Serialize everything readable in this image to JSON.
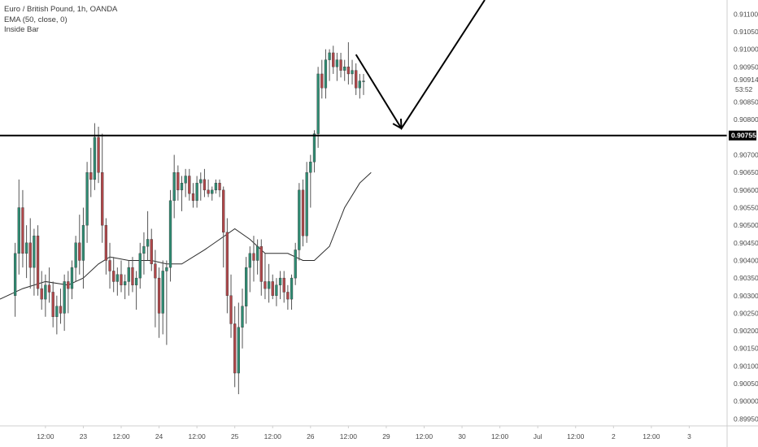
{
  "legend": {
    "symbol": "Euro / British Pound, 1h, OANDA",
    "indicator_ema": "EMA (50, close, 0)",
    "indicator_inside": "Inside Bar"
  },
  "chart_data": {
    "type": "candlestick",
    "instrument": "EUR/GBP",
    "timeframe": "1h",
    "y_axis": {
      "range": [
        0.8993,
        0.9114
      ],
      "tick_labels": [
        "0.91100",
        "0.91050",
        "0.91000",
        "0.90950",
        "0.90914",
        "0.90850",
        "0.90800",
        "0.90755",
        "0.90700",
        "0.90650",
        "0.90600",
        "0.90550",
        "0.90500",
        "0.90450",
        "0.90400",
        "0.90350",
        "0.90300",
        "0.90250",
        "0.90200",
        "0.90150",
        "0.90100",
        "0.90050",
        "0.90000",
        "0.89950"
      ],
      "tick_values": [
        0.911,
        0.9105,
        0.91,
        0.9095,
        0.90914,
        0.9085,
        0.908,
        0.90755,
        0.907,
        0.9065,
        0.906,
        0.9055,
        0.905,
        0.9045,
        0.904,
        0.9035,
        0.903,
        0.9025,
        0.902,
        0.9015,
        0.901,
        0.9005,
        0.9,
        0.8995
      ]
    },
    "x_axis": {
      "range": [
        -4,
        188
      ],
      "tick_labels": [
        "12:00",
        "23",
        "12:00",
        "24",
        "12:00",
        "25",
        "12:00",
        "26",
        "12:00",
        "29",
        "12:00",
        "30",
        "12:00",
        "Jul",
        "12:00",
        "2",
        "12:00",
        "3"
      ],
      "tick_values": [
        8,
        18,
        28,
        38,
        48,
        58,
        68,
        78,
        88,
        98,
        108,
        118,
        128,
        138,
        148,
        158,
        168,
        178
      ]
    },
    "last_price_label": "0.90914",
    "countdown_label": "53:52",
    "horizontal_level": {
      "value": 0.90755,
      "label": "0.90755"
    },
    "projection_arrow": {
      "points": [
        [
          90,
          0.90985
        ],
        [
          102,
          0.90775
        ],
        [
          124,
          0.9114
        ]
      ]
    },
    "ema": [
      [
        -4,
        0.9029
      ],
      [
        2,
        0.9032
      ],
      [
        8,
        0.9034
      ],
      [
        14,
        0.9033
      ],
      [
        18,
        0.9035
      ],
      [
        22,
        0.9039
      ],
      [
        25,
        0.9041
      ],
      [
        30,
        0.904
      ],
      [
        36,
        0.904
      ],
      [
        40,
        0.9039
      ],
      [
        44,
        0.9039
      ],
      [
        50,
        0.9043
      ],
      [
        54,
        0.9046
      ],
      [
        58,
        0.9049
      ],
      [
        62,
        0.9046
      ],
      [
        66,
        0.9042
      ],
      [
        72,
        0.9042
      ],
      [
        76,
        0.904
      ],
      [
        79,
        0.904
      ],
      [
        83,
        0.9044
      ],
      [
        87,
        0.9055
      ],
      [
        91,
        0.9062
      ],
      [
        94,
        0.9065
      ]
    ],
    "candles": [
      {
        "o": 0.903,
        "h": 0.9045,
        "l": 0.9024,
        "c": 0.9042
      },
      {
        "o": 0.9042,
        "h": 0.9063,
        "l": 0.9036,
        "c": 0.9055
      },
      {
        "o": 0.9055,
        "h": 0.906,
        "l": 0.9038,
        "c": 0.9042
      },
      {
        "o": 0.9042,
        "h": 0.905,
        "l": 0.9035,
        "c": 0.9045
      },
      {
        "o": 0.9045,
        "h": 0.9052,
        "l": 0.9032,
        "c": 0.9038
      },
      {
        "o": 0.9038,
        "h": 0.9049,
        "l": 0.903,
        "c": 0.9047
      },
      {
        "o": 0.9047,
        "h": 0.905,
        "l": 0.903,
        "c": 0.9032
      },
      {
        "o": 0.9032,
        "h": 0.9037,
        "l": 0.9026,
        "c": 0.9029
      },
      {
        "o": 0.9029,
        "h": 0.9036,
        "l": 0.9024,
        "c": 0.9033
      },
      {
        "o": 0.9033,
        "h": 0.9038,
        "l": 0.9028,
        "c": 0.9031
      },
      {
        "o": 0.9031,
        "h": 0.9034,
        "l": 0.9021,
        "c": 0.9024
      },
      {
        "o": 0.9024,
        "h": 0.903,
        "l": 0.9019,
        "c": 0.9027
      },
      {
        "o": 0.9027,
        "h": 0.9032,
        "l": 0.9022,
        "c": 0.9025
      },
      {
        "o": 0.9025,
        "h": 0.9036,
        "l": 0.902,
        "c": 0.9034
      },
      {
        "o": 0.9034,
        "h": 0.9037,
        "l": 0.9025,
        "c": 0.9032
      },
      {
        "o": 0.9032,
        "h": 0.904,
        "l": 0.9029,
        "c": 0.9038
      },
      {
        "o": 0.9038,
        "h": 0.9047,
        "l": 0.9034,
        "c": 0.9045
      },
      {
        "o": 0.9045,
        "h": 0.9053,
        "l": 0.9036,
        "c": 0.904
      },
      {
        "o": 0.904,
        "h": 0.9055,
        "l": 0.9032,
        "c": 0.905
      },
      {
        "o": 0.905,
        "h": 0.9068,
        "l": 0.9045,
        "c": 0.9065
      },
      {
        "o": 0.9065,
        "h": 0.9072,
        "l": 0.9058,
        "c": 0.9063
      },
      {
        "o": 0.9063,
        "h": 0.9079,
        "l": 0.906,
        "c": 0.9075
      },
      {
        "o": 0.9075,
        "h": 0.9078,
        "l": 0.9062,
        "c": 0.9065
      },
      {
        "o": 0.9065,
        "h": 0.9076,
        "l": 0.9045,
        "c": 0.905
      },
      {
        "o": 0.905,
        "h": 0.9052,
        "l": 0.9036,
        "c": 0.904
      },
      {
        "o": 0.904,
        "h": 0.9045,
        "l": 0.9032,
        "c": 0.9037
      },
      {
        "o": 0.9037,
        "h": 0.9041,
        "l": 0.9031,
        "c": 0.9034
      },
      {
        "o": 0.9034,
        "h": 0.9038,
        "l": 0.903,
        "c": 0.9036
      },
      {
        "o": 0.9036,
        "h": 0.904,
        "l": 0.9031,
        "c": 0.9033
      },
      {
        "o": 0.9033,
        "h": 0.9036,
        "l": 0.9029,
        "c": 0.9034
      },
      {
        "o": 0.9034,
        "h": 0.904,
        "l": 0.903,
        "c": 0.9038
      },
      {
        "o": 0.9038,
        "h": 0.9041,
        "l": 0.9031,
        "c": 0.9033
      },
      {
        "o": 0.9033,
        "h": 0.9037,
        "l": 0.9026,
        "c": 0.9035
      },
      {
        "o": 0.9035,
        "h": 0.9045,
        "l": 0.9032,
        "c": 0.9042
      },
      {
        "o": 0.9042,
        "h": 0.9048,
        "l": 0.9036,
        "c": 0.9044
      },
      {
        "o": 0.9044,
        "h": 0.9054,
        "l": 0.904,
        "c": 0.9046
      },
      {
        "o": 0.9046,
        "h": 0.9049,
        "l": 0.9037,
        "c": 0.9039
      },
      {
        "o": 0.9039,
        "h": 0.9043,
        "l": 0.9021,
        "c": 0.9035
      },
      {
        "o": 0.9035,
        "h": 0.9038,
        "l": 0.9018,
        "c": 0.9025
      },
      {
        "o": 0.9025,
        "h": 0.904,
        "l": 0.9019,
        "c": 0.9037
      },
      {
        "o": 0.9037,
        "h": 0.904,
        "l": 0.9016,
        "c": 0.9038
      },
      {
        "o": 0.9038,
        "h": 0.906,
        "l": 0.9034,
        "c": 0.9057
      },
      {
        "o": 0.9057,
        "h": 0.907,
        "l": 0.9052,
        "c": 0.9065
      },
      {
        "o": 0.9065,
        "h": 0.9067,
        "l": 0.9057,
        "c": 0.906
      },
      {
        "o": 0.906,
        "h": 0.9064,
        "l": 0.9054,
        "c": 0.9062
      },
      {
        "o": 0.9062,
        "h": 0.9066,
        "l": 0.9058,
        "c": 0.9064
      },
      {
        "o": 0.9064,
        "h": 0.9066,
        "l": 0.9057,
        "c": 0.9059
      },
      {
        "o": 0.9059,
        "h": 0.9062,
        "l": 0.9055,
        "c": 0.9057
      },
      {
        "o": 0.9057,
        "h": 0.9064,
        "l": 0.9055,
        "c": 0.9062
      },
      {
        "o": 0.9062,
        "h": 0.9065,
        "l": 0.9057,
        "c": 0.9063
      },
      {
        "o": 0.9063,
        "h": 0.9066,
        "l": 0.9058,
        "c": 0.906
      },
      {
        "o": 0.906,
        "h": 0.9063,
        "l": 0.9058,
        "c": 0.9059
      },
      {
        "o": 0.9059,
        "h": 0.9061,
        "l": 0.9057,
        "c": 0.906
      },
      {
        "o": 0.906,
        "h": 0.9063,
        "l": 0.9059,
        "c": 0.9062
      },
      {
        "o": 0.9062,
        "h": 0.9063,
        "l": 0.9058,
        "c": 0.906
      },
      {
        "o": 0.906,
        "h": 0.9061,
        "l": 0.9038,
        "c": 0.9048
      },
      {
        "o": 0.9048,
        "h": 0.9052,
        "l": 0.9025,
        "c": 0.903
      },
      {
        "o": 0.903,
        "h": 0.9036,
        "l": 0.9018,
        "c": 0.9022
      },
      {
        "o": 0.9022,
        "h": 0.9027,
        "l": 0.9004,
        "c": 0.9008
      },
      {
        "o": 0.9008,
        "h": 0.9028,
        "l": 0.9002,
        "c": 0.9021
      },
      {
        "o": 0.9021,
        "h": 0.9032,
        "l": 0.9015,
        "c": 0.9027
      },
      {
        "o": 0.9027,
        "h": 0.9041,
        "l": 0.9022,
        "c": 0.9038
      },
      {
        "o": 0.9038,
        "h": 0.9044,
        "l": 0.9031,
        "c": 0.9042
      },
      {
        "o": 0.9042,
        "h": 0.9047,
        "l": 0.9034,
        "c": 0.904
      },
      {
        "o": 0.904,
        "h": 0.9046,
        "l": 0.9036,
        "c": 0.9044
      },
      {
        "o": 0.9044,
        "h": 0.9046,
        "l": 0.903,
        "c": 0.9034
      },
      {
        "o": 0.9034,
        "h": 0.9042,
        "l": 0.9029,
        "c": 0.9032
      },
      {
        "o": 0.9032,
        "h": 0.9039,
        "l": 0.9028,
        "c": 0.9034
      },
      {
        "o": 0.9034,
        "h": 0.9036,
        "l": 0.9029,
        "c": 0.903
      },
      {
        "o": 0.903,
        "h": 0.9035,
        "l": 0.9027,
        "c": 0.9033
      },
      {
        "o": 0.9033,
        "h": 0.9037,
        "l": 0.9029,
        "c": 0.9035
      },
      {
        "o": 0.9035,
        "h": 0.9037,
        "l": 0.9028,
        "c": 0.9031
      },
      {
        "o": 0.9031,
        "h": 0.9033,
        "l": 0.9026,
        "c": 0.9029
      },
      {
        "o": 0.9029,
        "h": 0.9036,
        "l": 0.9026,
        "c": 0.9035
      },
      {
        "o": 0.9035,
        "h": 0.9045,
        "l": 0.9033,
        "c": 0.9043
      },
      {
        "o": 0.9043,
        "h": 0.9062,
        "l": 0.904,
        "c": 0.906
      },
      {
        "o": 0.906,
        "h": 0.9063,
        "l": 0.9044,
        "c": 0.9047
      },
      {
        "o": 0.9047,
        "h": 0.9068,
        "l": 0.9045,
        "c": 0.9065
      },
      {
        "o": 0.9065,
        "h": 0.907,
        "l": 0.9055,
        "c": 0.9068
      },
      {
        "o": 0.9068,
        "h": 0.9077,
        "l": 0.9065,
        "c": 0.9076
      },
      {
        "o": 0.9076,
        "h": 0.9095,
        "l": 0.9072,
        "c": 0.9093
      },
      {
        "o": 0.9093,
        "h": 0.9097,
        "l": 0.9086,
        "c": 0.9089
      },
      {
        "o": 0.9089,
        "h": 0.91,
        "l": 0.9086,
        "c": 0.9097
      },
      {
        "o": 0.9097,
        "h": 0.91,
        "l": 0.9091,
        "c": 0.9099
      },
      {
        "o": 0.9099,
        "h": 0.9101,
        "l": 0.9093,
        "c": 0.9095
      },
      {
        "o": 0.9095,
        "h": 0.9099,
        "l": 0.9091,
        "c": 0.9097
      },
      {
        "o": 0.9097,
        "h": 0.9099,
        "l": 0.9092,
        "c": 0.9094
      },
      {
        "o": 0.9094,
        "h": 0.9097,
        "l": 0.9091,
        "c": 0.9095
      },
      {
        "o": 0.9095,
        "h": 0.9102,
        "l": 0.909,
        "c": 0.9093
      },
      {
        "o": 0.9093,
        "h": 0.9097,
        "l": 0.909,
        "c": 0.9094
      },
      {
        "o": 0.9094,
        "h": 0.9096,
        "l": 0.9087,
        "c": 0.9089
      },
      {
        "o": 0.9089,
        "h": 0.9093,
        "l": 0.9086,
        "c": 0.9091
      },
      {
        "o": 0.9091,
        "h": 0.9093,
        "l": 0.9087,
        "c": 0.9091
      }
    ]
  },
  "colors": {
    "up_candle": "#2e8b72",
    "down_candle": "#b0474a",
    "wick": "#555555",
    "ema_line": "#2b2b2b",
    "level_line": "#000000",
    "arrow": "#000000",
    "axis_border": "#cfcfcf",
    "tag_bg": "#000000",
    "tag_text": "#ffffff"
  }
}
